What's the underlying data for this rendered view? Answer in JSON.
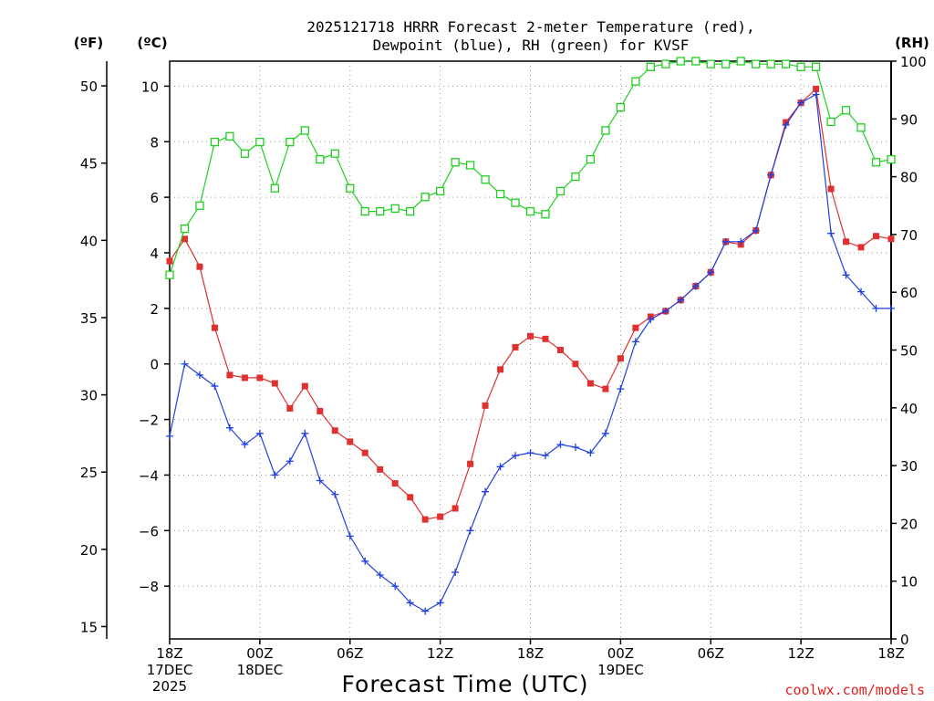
{
  "chart_data": {
    "type": "line",
    "title_line1": "2025121718 HRRR Forecast 2-meter Temperature (red),",
    "title_line2": "Dewpoint (blue), RH (green) for KVSF",
    "xlabel": "Forecast Time (UTC)",
    "credit": "coolwx.com/models",
    "unit_f": "(ºF)",
    "unit_c": "(ºC)",
    "unit_rh": "(RH)",
    "x_hours": [
      0,
      1,
      2,
      3,
      4,
      5,
      6,
      7,
      8,
      9,
      10,
      11,
      12,
      13,
      14,
      15,
      16,
      17,
      18,
      19,
      20,
      21,
      22,
      23,
      24,
      25,
      26,
      27,
      28,
      29,
      30,
      31,
      32,
      33,
      34,
      35,
      36,
      37,
      38,
      39,
      40,
      41,
      42,
      43,
      44,
      45,
      46,
      47,
      48
    ],
    "xlim": [
      0,
      48
    ],
    "ylim_c": [
      -9.9,
      10.9
    ],
    "ylim_f": [
      14.2,
      51.6
    ],
    "ylim_rh": [
      0,
      100
    ],
    "c_ticks": [
      -8,
      -6,
      -4,
      -2,
      0,
      2,
      4,
      6,
      8,
      10
    ],
    "c_tick_labels": [
      "−8",
      "−6",
      "−4",
      "−2",
      "0",
      "2",
      "4",
      "6",
      "8",
      "10"
    ],
    "f_ticks": [
      15,
      20,
      25,
      30,
      35,
      40,
      45,
      50
    ],
    "rh_ticks": [
      0,
      10,
      20,
      30,
      40,
      50,
      60,
      70,
      80,
      90,
      100
    ],
    "x_ticks": [
      {
        "hour": 0,
        "lines": [
          "18Z",
          "17DEC",
          "2025"
        ]
      },
      {
        "hour": 6,
        "lines": [
          "00Z",
          "18DEC"
        ]
      },
      {
        "hour": 12,
        "lines": [
          "06Z"
        ]
      },
      {
        "hour": 18,
        "lines": [
          "12Z"
        ]
      },
      {
        "hour": 24,
        "lines": [
          "18Z"
        ]
      },
      {
        "hour": 30,
        "lines": [
          "00Z",
          "19DEC"
        ]
      },
      {
        "hour": 36,
        "lines": [
          "06Z"
        ]
      },
      {
        "hour": 42,
        "lines": [
          "12Z"
        ]
      },
      {
        "hour": 48,
        "lines": [
          "18Z"
        ]
      }
    ],
    "series": [
      {
        "name": "Temperature",
        "unit": "C",
        "color": "#e03030",
        "marker": "filled-square",
        "values": [
          3.7,
          4.5,
          3.5,
          1.3,
          -0.4,
          -0.5,
          -0.5,
          -0.7,
          -1.6,
          -0.8,
          -1.7,
          -2.4,
          -2.8,
          -3.2,
          -3.8,
          -4.3,
          -4.8,
          -5.6,
          -5.5,
          -5.2,
          -3.6,
          -1.5,
          -0.2,
          0.6,
          1.0,
          0.9,
          0.5,
          0.0,
          -0.7,
          -0.9,
          0.2,
          1.3,
          1.7,
          1.9,
          2.3,
          2.8,
          3.3,
          4.4,
          4.3,
          4.8,
          6.8,
          8.7,
          9.4,
          9.9,
          6.3,
          4.4,
          4.2,
          4.6,
          4.5
        ]
      },
      {
        "name": "Dewpoint",
        "unit": "C",
        "color": "#2040e0",
        "marker": "plus",
        "values": [
          -2.6,
          -0.0,
          -0.4,
          -0.8,
          -2.3,
          -2.9,
          -2.5,
          -4.0,
          -3.5,
          -2.5,
          -4.2,
          -4.7,
          -6.2,
          -7.1,
          -7.6,
          -8.0,
          -8.6,
          -8.9,
          -8.6,
          -7.5,
          -6.0,
          -4.6,
          -3.7,
          -3.3,
          -3.2,
          -3.3,
          -2.9,
          -3.0,
          -3.2,
          -2.5,
          -0.9,
          0.8,
          1.6,
          1.9,
          2.3,
          2.8,
          3.3,
          4.4,
          4.4,
          4.8,
          6.8,
          8.6,
          9.4,
          9.7,
          4.7,
          3.2,
          2.6,
          2.0,
          2.0
        ]
      },
      {
        "name": "RH",
        "unit": "%",
        "color": "#20d020",
        "marker": "open-square",
        "values": [
          63,
          71,
          75,
          86,
          87,
          84,
          86,
          78,
          86,
          88,
          83,
          84,
          78,
          74,
          74,
          74.5,
          74,
          76.5,
          77.5,
          82.5,
          82,
          79.5,
          77,
          75.5,
          74,
          73.5,
          77.5,
          80,
          83,
          88,
          92,
          96.5,
          99,
          99.5,
          100,
          100,
          99.5,
          99.5,
          100,
          99.5,
          99.5,
          99.5,
          99,
          99,
          89.5,
          91.5,
          88.5,
          82.5,
          83
        ]
      }
    ]
  }
}
